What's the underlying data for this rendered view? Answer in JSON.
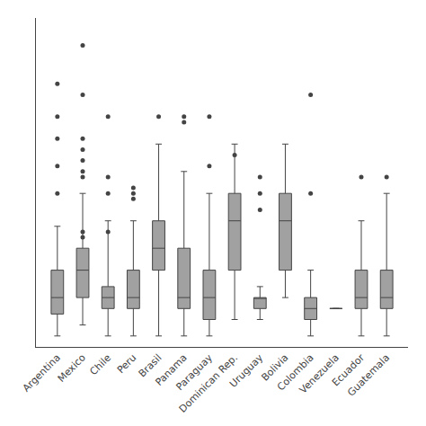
{
  "chart_data": {
    "type": "box",
    "categories": [
      "Argentina",
      "Mexico",
      "Chile",
      "Peru",
      "Brasil",
      "Panama",
      "Paraguay",
      "Dominican Rep.",
      "Uruguay",
      "Bolivia",
      "Colombia",
      "Venezuela",
      "Ecuador",
      "Guatemala"
    ],
    "values": [
      {
        "q1": 6,
        "median": 9,
        "q3": 14,
        "whislo": 2,
        "whishi": 22,
        "fliers": [
          28,
          33,
          38,
          42,
          48
        ]
      },
      {
        "q1": 9,
        "median": 14,
        "q3": 18,
        "whislo": 4,
        "whishi": 28,
        "fliers": [
          55,
          46,
          38,
          36,
          34,
          32,
          31,
          21,
          20
        ]
      },
      {
        "q1": 7,
        "median": 9,
        "q3": 11,
        "whislo": 2,
        "whishi": 23,
        "fliers": [
          42,
          31,
          28,
          21
        ]
      },
      {
        "q1": 7,
        "median": 9,
        "q3": 14,
        "whislo": 2,
        "whishi": 23,
        "fliers": [
          29,
          28,
          27
        ]
      },
      {
        "q1": 14,
        "median": 18,
        "q3": 23,
        "whislo": 2,
        "whishi": 37,
        "fliers": [
          42
        ]
      },
      {
        "q1": 7,
        "median": 9,
        "q3": 18,
        "whislo": 2,
        "whishi": 32,
        "fliers": [
          42,
          41
        ]
      },
      {
        "q1": 5,
        "median": 9,
        "q3": 14,
        "whislo": 2,
        "whishi": 28,
        "fliers": [
          42,
          33
        ]
      },
      {
        "q1": 14,
        "median": 23,
        "q3": 28,
        "whislo": 5,
        "whishi": 37,
        "fliers": [
          35
        ]
      },
      {
        "q1": 7,
        "median": 9,
        "q3": 9,
        "whislo": 5,
        "whishi": 11,
        "fliers": [
          31,
          28,
          25
        ]
      },
      {
        "q1": 14,
        "median": 23,
        "q3": 28,
        "whislo": 9,
        "whishi": 37,
        "fliers": []
      },
      {
        "q1": 5,
        "median": 7,
        "q3": 9,
        "whislo": 2,
        "whishi": 14,
        "fliers": [
          46,
          28
        ]
      },
      {
        "q1": 5,
        "median": 7,
        "q3": 5,
        "whislo": 5,
        "whishi": 5,
        "fliers": []
      },
      {
        "q1": 7,
        "median": 9,
        "q3": 14,
        "whislo": 2,
        "whishi": 23,
        "fliers": [
          31
        ]
      },
      {
        "q1": 7,
        "median": 9,
        "q3": 14,
        "whislo": 2,
        "whishi": 28,
        "fliers": [
          31
        ]
      }
    ],
    "color": "#444444",
    "ylim": [
      0,
      60
    ],
    "yticks": [],
    "grid": false,
    "tick_labels": "x"
  }
}
